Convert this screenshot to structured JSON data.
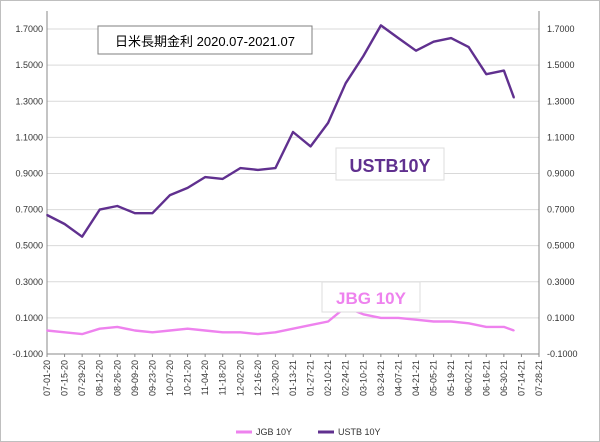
{
  "chart_data": {
    "type": "line",
    "title": "日米長期金利 2020.07-2021.07",
    "x_ticks": [
      "07-01-20",
      "07-15-20",
      "07-29-20",
      "08-12-20",
      "08-26-20",
      "09-09-20",
      "09-23-20",
      "10-07-20",
      "10-21-20",
      "11-04-20",
      "11-18-20",
      "12-02-20",
      "12-16-20",
      "12-30-20",
      "01-13-21",
      "01-27-21",
      "02-10-21",
      "02-24-21",
      "03-10-21",
      "03-24-21",
      "04-07-21",
      "04-21-21",
      "05-05-21",
      "05-19-21",
      "06-02-21",
      "06-16-21",
      "06-30-21",
      "07-14-21",
      "07-28-21"
    ],
    "y_ticks": [
      "1.7000",
      "1.5000",
      "1.3000",
      "1.1000",
      "0.9000",
      "0.7000",
      "0.5000",
      "0.3000",
      "0.1000",
      "-0.1000"
    ],
    "ylim": [
      -0.1,
      1.8
    ],
    "grid": true,
    "legend_position": "bottom",
    "series": [
      {
        "name": "JGB 10Y",
        "label": "JBG 10Y",
        "color": "#ee82ee",
        "x": [
          "07-01-20",
          "07-15-20",
          "07-29-20",
          "08-12-20",
          "08-26-20",
          "09-09-20",
          "09-23-20",
          "10-07-20",
          "10-21-20",
          "11-04-20",
          "11-18-20",
          "12-02-20",
          "12-16-20",
          "12-30-20",
          "01-13-21",
          "01-27-21",
          "02-10-21",
          "02-24-21",
          "03-10-21",
          "03-24-21",
          "04-07-21",
          "04-21-21",
          "05-05-21",
          "05-19-21",
          "06-02-21",
          "06-16-21",
          "06-30-21",
          "07-08-21"
        ],
        "values": [
          0.03,
          0.02,
          0.01,
          0.04,
          0.05,
          0.03,
          0.02,
          0.03,
          0.04,
          0.03,
          0.02,
          0.02,
          0.01,
          0.02,
          0.04,
          0.06,
          0.08,
          0.16,
          0.12,
          0.1,
          0.1,
          0.09,
          0.08,
          0.08,
          0.07,
          0.05,
          0.05,
          0.03
        ]
      },
      {
        "name": "USTB 10Y",
        "label": "USTB10Y",
        "color": "#60308f",
        "x": [
          "07-01-20",
          "07-15-20",
          "07-29-20",
          "08-12-20",
          "08-26-20",
          "09-09-20",
          "09-23-20",
          "10-07-20",
          "10-21-20",
          "11-04-20",
          "11-18-20",
          "12-02-20",
          "12-16-20",
          "12-30-20",
          "01-13-21",
          "01-27-21",
          "02-10-21",
          "02-24-21",
          "03-10-21",
          "03-24-21",
          "04-07-21",
          "04-21-21",
          "05-05-21",
          "05-19-21",
          "06-02-21",
          "06-16-21",
          "06-30-21",
          "07-08-21"
        ],
        "values": [
          0.67,
          0.62,
          0.55,
          0.7,
          0.72,
          0.68,
          0.68,
          0.78,
          0.82,
          0.88,
          0.87,
          0.93,
          0.92,
          0.93,
          1.13,
          1.05,
          1.18,
          1.4,
          1.55,
          1.72,
          1.65,
          1.58,
          1.63,
          1.65,
          1.6,
          1.45,
          1.47,
          1.32
        ]
      }
    ]
  }
}
